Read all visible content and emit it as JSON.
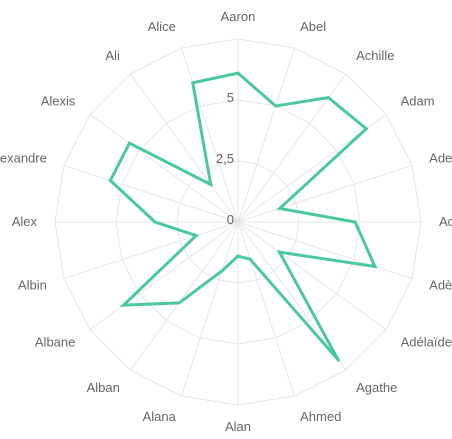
{
  "chart_data": {
    "type": "radar",
    "title": "",
    "categories": [
      "Aaron",
      "Abel",
      "Achille",
      "Adam",
      "Adem",
      "Adrien",
      "Adèle",
      "Adélaïde",
      "Agathe",
      "Ahmed",
      "Alan",
      "Alana",
      "Alban",
      "Albane",
      "Albin",
      "Alex",
      "Alexandre",
      "Alexis",
      "Ali",
      "Alice"
    ],
    "series": [
      {
        "values": [
          6.1,
          5.0,
          6.3,
          6.5,
          1.8,
          4.8,
          5.9,
          2.1,
          7.0,
          1.6,
          1.4,
          2.1,
          4.1,
          5.8,
          1.8,
          3.4,
          5.5,
          5.5,
          1.9,
          6.0
        ],
        "color": "#4cc99b"
      }
    ],
    "r_ticks": [
      "0",
      "2,5",
      "5"
    ],
    "r_range": [
      0,
      7.5
    ],
    "grid": true,
    "legend": "none"
  }
}
